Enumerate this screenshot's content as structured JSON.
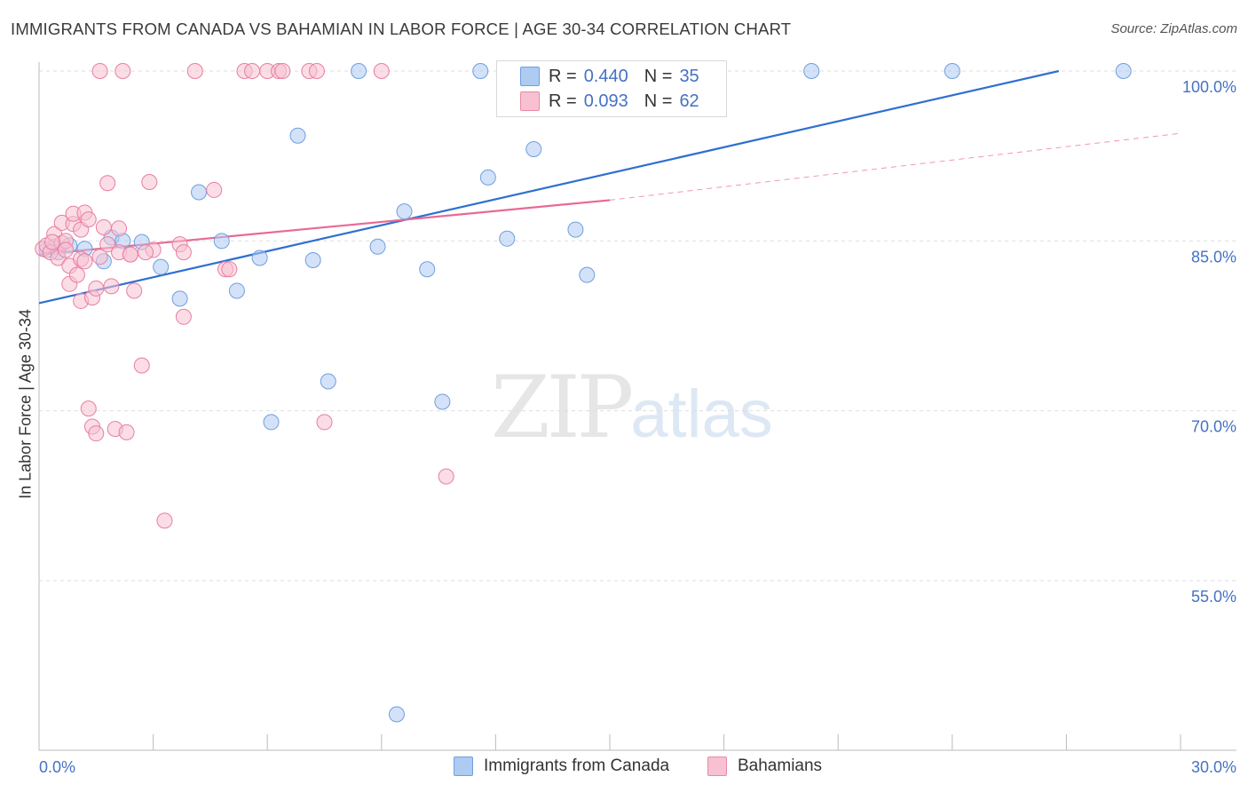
{
  "header": {
    "title": "IMMIGRANTS FROM CANADA VS BAHAMIAN IN LABOR FORCE | AGE 30-34 CORRELATION CHART",
    "source": "Source: ZipAtlas.com"
  },
  "watermark": {
    "zip": "ZIP",
    "atlas": "atlas"
  },
  "legend": {
    "rows": [
      {
        "r_label": "R =",
        "r_value": "0.440",
        "n_label": "N =",
        "n_value": "35",
        "color": "#aecbf2",
        "border": "#6f9fde"
      },
      {
        "r_label": "R =",
        "r_value": "0.093",
        "n_label": "N =",
        "n_value": "62",
        "color": "#f7c1d2",
        "border": "#e88aa8"
      }
    ]
  },
  "bottom_legend": {
    "items": [
      {
        "label": "Immigrants from Canada",
        "color": "#aecbf2",
        "border": "#6f9fde"
      },
      {
        "label": "Bahamians",
        "color": "#f7c1d2",
        "border": "#e88aa8"
      }
    ]
  },
  "chart_data": {
    "type": "scatter",
    "title": "IMMIGRANTS FROM CANADA VS BAHAMIAN IN LABOR FORCE | AGE 30-34 CORRELATION CHART",
    "xlabel": "",
    "ylabel": "In Labor Force | Age 30-34",
    "xlim": [
      0,
      30
    ],
    "ylim": [
      41.5,
      101.5
    ],
    "x_tick_labels": [
      "0.0%",
      "30.0%"
    ],
    "y_ticks": [
      55,
      70,
      85,
      100
    ],
    "y_tick_labels": [
      "55.0%",
      "70.0%",
      "85.0%",
      "100.0%"
    ],
    "grid": true,
    "series": [
      {
        "name": "Immigrants from Canada",
        "color": "#6f9fde",
        "fill": "#aecbf2",
        "points": [
          [
            0.2,
            84.2
          ],
          [
            0.4,
            84.5
          ],
          [
            0.5,
            84.0
          ],
          [
            0.8,
            84.6
          ],
          [
            1.9,
            85.3
          ],
          [
            1.7,
            83.2
          ],
          [
            2.2,
            85.0
          ],
          [
            2.7,
            84.9
          ],
          [
            3.2,
            82.7
          ],
          [
            3.7,
            79.9
          ],
          [
            4.2,
            89.3
          ],
          [
            4.8,
            85.0
          ],
          [
            5.2,
            80.6
          ],
          [
            5.8,
            83.5
          ],
          [
            6.1,
            69.0
          ],
          [
            6.8,
            94.3
          ],
          [
            7.2,
            83.3
          ],
          [
            7.6,
            72.6
          ],
          [
            8.4,
            100.0
          ],
          [
            8.9,
            84.5
          ],
          [
            9.4,
            43.2
          ],
          [
            9.6,
            87.6
          ],
          [
            10.2,
            82.5
          ],
          [
            10.6,
            70.8
          ],
          [
            11.6,
            100.0
          ],
          [
            11.8,
            90.6
          ],
          [
            12.3,
            85.2
          ],
          [
            13.0,
            93.1
          ],
          [
            14.1,
            86.0
          ],
          [
            14.4,
            82.0
          ],
          [
            15.5,
            100.0
          ],
          [
            20.3,
            100.0
          ],
          [
            24.0,
            100.0
          ],
          [
            28.5,
            100.0
          ],
          [
            1.2,
            84.3
          ]
        ],
        "trend": {
          "x0": 0,
          "y0": 79.5,
          "x1": 26.8,
          "y1": 100.0
        }
      },
      {
        "name": "Bahamians",
        "color": "#e87ea2",
        "fill": "#f7c1d2",
        "points": [
          [
            0.1,
            84.3
          ],
          [
            0.2,
            84.6
          ],
          [
            0.3,
            84.0
          ],
          [
            0.4,
            85.6
          ],
          [
            0.5,
            83.5
          ],
          [
            0.6,
            84.8
          ],
          [
            0.6,
            86.6
          ],
          [
            0.7,
            85.0
          ],
          [
            0.7,
            84.2
          ],
          [
            0.8,
            82.8
          ],
          [
            0.8,
            81.2
          ],
          [
            0.9,
            86.5
          ],
          [
            0.9,
            87.4
          ],
          [
            1.0,
            82.0
          ],
          [
            1.1,
            86.0
          ],
          [
            1.1,
            83.4
          ],
          [
            1.2,
            87.5
          ],
          [
            1.2,
            83.2
          ],
          [
            1.3,
            86.9
          ],
          [
            1.1,
            79.7
          ],
          [
            1.3,
            70.2
          ],
          [
            1.4,
            80.0
          ],
          [
            1.4,
            68.6
          ],
          [
            1.5,
            68.0
          ],
          [
            1.5,
            80.8
          ],
          [
            1.6,
            83.6
          ],
          [
            1.7,
            86.2
          ],
          [
            1.8,
            84.7
          ],
          [
            1.8,
            90.1
          ],
          [
            1.9,
            81.0
          ],
          [
            2.0,
            68.4
          ],
          [
            2.1,
            84.0
          ],
          [
            2.1,
            86.1
          ],
          [
            2.3,
            68.1
          ],
          [
            2.4,
            83.8
          ],
          [
            2.4,
            83.8
          ],
          [
            2.5,
            80.6
          ],
          [
            2.7,
            74.0
          ],
          [
            2.9,
            90.2
          ],
          [
            3.0,
            84.2
          ],
          [
            3.3,
            60.3
          ],
          [
            3.7,
            84.7
          ],
          [
            3.8,
            78.3
          ],
          [
            3.8,
            84.0
          ],
          [
            4.6,
            89.5
          ],
          [
            4.9,
            82.5
          ],
          [
            5.0,
            82.5
          ],
          [
            5.4,
            100.0
          ],
          [
            5.6,
            100.0
          ],
          [
            6.0,
            100.0
          ],
          [
            6.3,
            100.0
          ],
          [
            6.4,
            100.0
          ],
          [
            7.1,
            100.0
          ],
          [
            7.3,
            100.0
          ],
          [
            1.6,
            100.0
          ],
          [
            2.2,
            100.0
          ],
          [
            4.1,
            100.0
          ],
          [
            9.0,
            100.0
          ],
          [
            7.5,
            69.0
          ],
          [
            10.7,
            64.2
          ],
          [
            2.8,
            84.0
          ],
          [
            0.35,
            84.9
          ]
        ],
        "trend": {
          "x0": 0,
          "y0": 83.8,
          "x1": 15.0,
          "y1": 88.6
        },
        "trend_extension": {
          "x0": 15.0,
          "y0": 88.6,
          "x1": 30.0,
          "y1": 94.5
        }
      }
    ]
  }
}
